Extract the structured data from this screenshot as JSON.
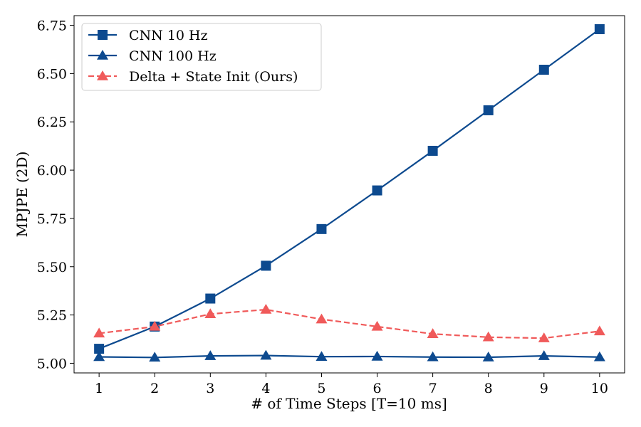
{
  "chart_data": {
    "type": "line",
    "xlabel": "# of Time Steps [T=10 ms]",
    "ylabel": "MPJPE (2D)",
    "x": [
      1,
      2,
      3,
      4,
      5,
      6,
      7,
      8,
      9,
      10
    ],
    "xlim": [
      0.55,
      10.45
    ],
    "ylim": [
      4.95,
      6.8
    ],
    "yticks": [
      5.0,
      5.25,
      5.5,
      5.75,
      6.0,
      6.25,
      6.5,
      6.75
    ],
    "ytick_labels": [
      "5.00",
      "5.25",
      "5.50",
      "5.75",
      "6.00",
      "6.25",
      "6.50",
      "6.75"
    ],
    "xtick_labels": [
      "1",
      "2",
      "3",
      "4",
      "5",
      "6",
      "7",
      "8",
      "9",
      "10"
    ],
    "grid": false,
    "legend_position": "top-left",
    "series": [
      {
        "name": "CNN 10 Hz",
        "values": [
          5.075,
          5.19,
          5.335,
          5.505,
          5.695,
          5.895,
          6.1,
          6.31,
          6.52,
          6.73
        ],
        "color": "#0d4a8f",
        "marker": "square",
        "dash": "solid"
      },
      {
        "name": "CNN 100 Hz",
        "values": [
          5.033,
          5.03,
          5.038,
          5.04,
          5.034,
          5.035,
          5.032,
          5.031,
          5.038,
          5.032
        ],
        "color": "#0d4a8f",
        "marker": "triangle",
        "dash": "solid"
      },
      {
        "name": "Delta + State Init (Ours)",
        "values": [
          5.155,
          5.19,
          5.255,
          5.278,
          5.228,
          5.19,
          5.152,
          5.135,
          5.13,
          5.166
        ],
        "color": "#f05a5a",
        "marker": "triangle",
        "dash": "dashed"
      }
    ]
  }
}
